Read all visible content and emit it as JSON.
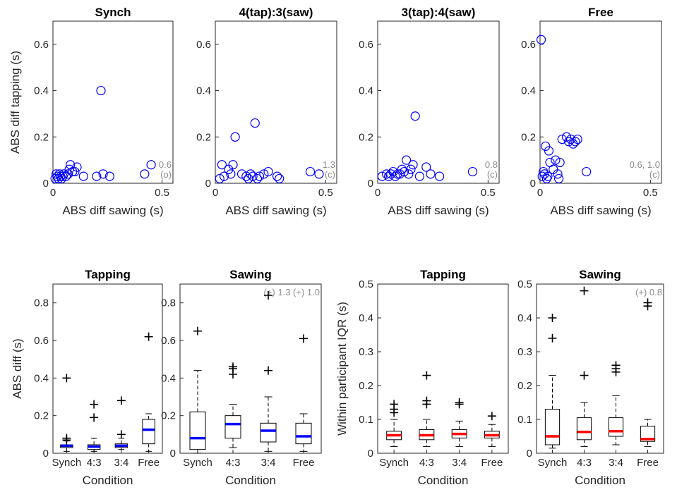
{
  "colors": {
    "scatter": "#0000ff",
    "median_tap": "#0000ff",
    "median_iqr": "#ff0000",
    "annotation": "#8c8c8c",
    "axis": "#262626"
  },
  "chart_data": [
    {
      "type": "scatter",
      "title": "Synch",
      "xlabel": "ABS diff sawing (s)",
      "ylabel": "ABS diff tapping (s)",
      "xlim": [
        0,
        0.55
      ],
      "ylim": [
        0,
        0.7
      ],
      "xticks": [
        "0",
        "0.5"
      ],
      "yticks": [
        "0",
        "0.2",
        "0.4",
        "0.6"
      ],
      "note": [
        "0.6",
        "(o)"
      ],
      "points": [
        [
          0.01,
          0.02
        ],
        [
          0.015,
          0.04
        ],
        [
          0.02,
          0.03
        ],
        [
          0.025,
          0.02
        ],
        [
          0.03,
          0.04
        ],
        [
          0.035,
          0.03
        ],
        [
          0.04,
          0.02
        ],
        [
          0.045,
          0.03
        ],
        [
          0.05,
          0.04
        ],
        [
          0.06,
          0.03
        ],
        [
          0.07,
          0.04
        ],
        [
          0.075,
          0.06
        ],
        [
          0.08,
          0.08
        ],
        [
          0.09,
          0.05
        ],
        [
          0.1,
          0.05
        ],
        [
          0.11,
          0.07
        ],
        [
          0.14,
          0.03
        ],
        [
          0.2,
          0.03
        ],
        [
          0.22,
          0.4
        ],
        [
          0.23,
          0.04
        ],
        [
          0.26,
          0.03
        ],
        [
          0.42,
          0.04
        ],
        [
          0.45,
          0.08
        ]
      ]
    },
    {
      "type": "scatter",
      "title": "4(tap):3(saw)",
      "xlabel": "ABS diff sawing (s)",
      "ylabel": "",
      "xlim": [
        0,
        0.55
      ],
      "ylim": [
        0,
        0.7
      ],
      "xticks": [
        "0",
        "0.5"
      ],
      "yticks": [
        "0",
        "0.2",
        "0.4",
        "0.6"
      ],
      "note": [
        "1.3",
        "(c)"
      ],
      "points": [
        [
          0.02,
          0.02
        ],
        [
          0.03,
          0.08
        ],
        [
          0.04,
          0.03
        ],
        [
          0.06,
          0.06
        ],
        [
          0.07,
          0.04
        ],
        [
          0.08,
          0.08
        ],
        [
          0.09,
          0.2
        ],
        [
          0.12,
          0.04
        ],
        [
          0.14,
          0.03
        ],
        [
          0.15,
          0.02
        ],
        [
          0.16,
          0.04
        ],
        [
          0.17,
          0.03
        ],
        [
          0.18,
          0.26
        ],
        [
          0.19,
          0.02
        ],
        [
          0.2,
          0.03
        ],
        [
          0.22,
          0.04
        ],
        [
          0.24,
          0.05
        ],
        [
          0.28,
          0.03
        ],
        [
          0.29,
          0.02
        ],
        [
          0.43,
          0.05
        ],
        [
          0.47,
          0.04
        ]
      ]
    },
    {
      "type": "scatter",
      "title": "3(tap):4(saw)",
      "xlabel": "ABS diff sawing (s)",
      "ylabel": "",
      "xlim": [
        0,
        0.55
      ],
      "ylim": [
        0,
        0.7
      ],
      "xticks": [
        "0",
        "0.5"
      ],
      "yticks": [
        "0",
        "0.2",
        "0.4",
        "0.6"
      ],
      "note": [
        "0.8",
        "(c)"
      ],
      "points": [
        [
          0.02,
          0.03
        ],
        [
          0.04,
          0.04
        ],
        [
          0.05,
          0.03
        ],
        [
          0.06,
          0.04
        ],
        [
          0.07,
          0.05
        ],
        [
          0.08,
          0.03
        ],
        [
          0.09,
          0.04
        ],
        [
          0.1,
          0.04
        ],
        [
          0.11,
          0.06
        ],
        [
          0.12,
          0.05
        ],
        [
          0.13,
          0.1
        ],
        [
          0.14,
          0.04
        ],
        [
          0.15,
          0.06
        ],
        [
          0.16,
          0.08
        ],
        [
          0.17,
          0.29
        ],
        [
          0.19,
          0.03
        ],
        [
          0.22,
          0.07
        ],
        [
          0.24,
          0.04
        ],
        [
          0.28,
          0.03
        ],
        [
          0.43,
          0.05
        ]
      ]
    },
    {
      "type": "scatter",
      "title": "Free",
      "xlabel": "ABS diff sawing (s)",
      "ylabel": "",
      "xlim": [
        0,
        0.55
      ],
      "ylim": [
        0,
        0.7
      ],
      "xticks": [
        "0",
        "0.5"
      ],
      "yticks": [
        "0",
        "0.2",
        "0.4",
        "0.6"
      ],
      "note": [
        "0.6, 1.0",
        "(c)"
      ],
      "points": [
        [
          0.005,
          0.62
        ],
        [
          0.01,
          0.03
        ],
        [
          0.015,
          0.05
        ],
        [
          0.02,
          0.04
        ],
        [
          0.025,
          0.16
        ],
        [
          0.03,
          0.02
        ],
        [
          0.035,
          0.03
        ],
        [
          0.04,
          0.14
        ],
        [
          0.045,
          0.09
        ],
        [
          0.06,
          0.06
        ],
        [
          0.07,
          0.1
        ],
        [
          0.08,
          0.04
        ],
        [
          0.085,
          0.02
        ],
        [
          0.09,
          0.09
        ],
        [
          0.1,
          0.19
        ],
        [
          0.12,
          0.2
        ],
        [
          0.13,
          0.18
        ],
        [
          0.14,
          0.19
        ],
        [
          0.15,
          0.17
        ],
        [
          0.16,
          0.18
        ],
        [
          0.17,
          0.19
        ],
        [
          0.21,
          0.05
        ]
      ]
    },
    {
      "type": "box",
      "title": "Tapping",
      "xlabel": "Condition",
      "ylabel": "ABS diff (s)",
      "categories": [
        "Synch",
        "4:3",
        "3:4",
        "Free"
      ],
      "ylim": [
        0,
        0.9
      ],
      "yticks": [
        "0",
        "0.2",
        "0.4",
        "0.6",
        "0.8"
      ],
      "note": "",
      "median_color": "median_tap",
      "boxes": [
        {
          "q1": 0.03,
          "median": 0.04,
          "q3": 0.045,
          "whisker_low": 0.01,
          "whisker_high": 0.065,
          "outliers": [
            0.07,
            0.08,
            0.4
          ]
        },
        {
          "q1": 0.02,
          "median": 0.035,
          "q3": 0.045,
          "whisker_low": 0.01,
          "whisker_high": 0.08,
          "outliers": [
            0.19,
            0.26
          ]
        },
        {
          "q1": 0.03,
          "median": 0.04,
          "q3": 0.05,
          "whisker_low": 0.02,
          "whisker_high": 0.08,
          "outliers": [
            0.1,
            0.28
          ]
        },
        {
          "q1": 0.05,
          "median": 0.125,
          "q3": 0.18,
          "whisker_low": 0.01,
          "whisker_high": 0.21,
          "outliers": [
            0.62
          ]
        }
      ]
    },
    {
      "type": "box",
      "title": "Sawing",
      "xlabel": "Condition",
      "ylabel": "",
      "categories": [
        "Synch",
        "4:3",
        "3:4",
        "Free"
      ],
      "ylim": [
        0,
        0.9
      ],
      "yticks": [
        "0",
        "0.2",
        "0.4",
        "0.6",
        "0.8"
      ],
      "note": "(+) 1.3   (+) 1.0",
      "median_color": "median_tap",
      "boxes": [
        {
          "q1": 0.02,
          "median": 0.08,
          "q3": 0.22,
          "whisker_low": 0.0,
          "whisker_high": 0.44,
          "outliers": [
            0.65
          ]
        },
        {
          "q1": 0.08,
          "median": 0.155,
          "q3": 0.2,
          "whisker_low": 0.03,
          "whisker_high": 0.26,
          "outliers": [
            0.42,
            0.45,
            0.46
          ]
        },
        {
          "q1": 0.06,
          "median": 0.12,
          "q3": 0.16,
          "whisker_low": 0.01,
          "whisker_high": 0.3,
          "outliers": [
            0.44,
            0.84
          ]
        },
        {
          "q1": 0.05,
          "median": 0.09,
          "q3": 0.16,
          "whisker_low": 0.01,
          "whisker_high": 0.21,
          "outliers": [
            0.61
          ]
        }
      ]
    },
    {
      "type": "box",
      "title": "Tapping",
      "xlabel": "Condition",
      "ylabel": "Within participant IQR (s)",
      "categories": [
        "Synch",
        "4:3",
        "3:4",
        "Free"
      ],
      "ylim": [
        0,
        0.5
      ],
      "yticks": [
        "0",
        "0.1",
        "0.2",
        "0.3",
        "0.4",
        "0.5"
      ],
      "note": "",
      "median_color": "median_iqr",
      "boxes": [
        {
          "q1": 0.04,
          "median": 0.053,
          "q3": 0.065,
          "whisker_low": 0.02,
          "whisker_high": 0.1,
          "outliers": [
            0.12,
            0.13,
            0.145
          ]
        },
        {
          "q1": 0.04,
          "median": 0.053,
          "q3": 0.07,
          "whisker_low": 0.02,
          "whisker_high": 0.1,
          "outliers": [
            0.145,
            0.155,
            0.23
          ]
        },
        {
          "q1": 0.045,
          "median": 0.057,
          "q3": 0.07,
          "whisker_low": 0.02,
          "whisker_high": 0.095,
          "outliers": [
            0.145,
            0.15
          ]
        },
        {
          "q1": 0.045,
          "median": 0.053,
          "q3": 0.065,
          "whisker_low": 0.02,
          "whisker_high": 0.085,
          "outliers": [
            0.11
          ]
        }
      ]
    },
    {
      "type": "box",
      "title": "Sawing",
      "xlabel": "Condition",
      "ylabel": "",
      "categories": [
        "Synch",
        "4:3",
        "3:4",
        "Free"
      ],
      "ylim": [
        0,
        0.5
      ],
      "yticks": [
        "0",
        "0.1",
        "0.2",
        "0.3",
        "0.4",
        "0.5"
      ],
      "note": "(+) 0.8",
      "median_color": "median_iqr",
      "boxes": [
        {
          "q1": 0.025,
          "median": 0.05,
          "q3": 0.13,
          "whisker_low": 0.015,
          "whisker_high": 0.23,
          "outliers": [
            0.34,
            0.4
          ]
        },
        {
          "q1": 0.04,
          "median": 0.063,
          "q3": 0.105,
          "whisker_low": 0.02,
          "whisker_high": 0.15,
          "outliers": [
            0.23,
            0.48
          ]
        },
        {
          "q1": 0.05,
          "median": 0.065,
          "q3": 0.105,
          "whisker_low": 0.025,
          "whisker_high": 0.17,
          "outliers": [
            0.24,
            0.25,
            0.26
          ]
        },
        {
          "q1": 0.035,
          "median": 0.042,
          "q3": 0.08,
          "whisker_low": 0.02,
          "whisker_high": 0.1,
          "outliers": [
            0.435,
            0.445
          ]
        }
      ]
    }
  ]
}
